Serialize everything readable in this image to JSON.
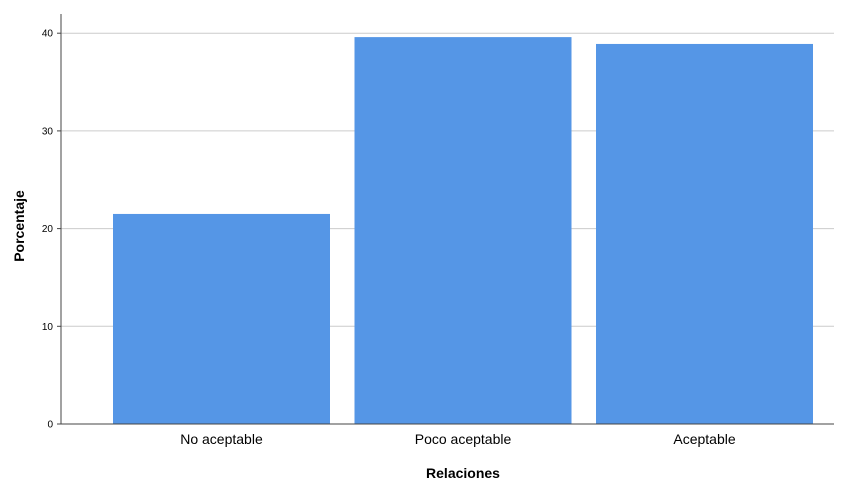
{
  "chart_data": {
    "type": "bar",
    "categories": [
      "No aceptable",
      "Poco aceptable",
      "Aceptable"
    ],
    "values": [
      21.5,
      39.6,
      38.9
    ],
    "xlabel": "Relaciones",
    "ylabel": "Porcentaje",
    "ylim": [
      0,
      42
    ],
    "yticks": [
      0,
      10,
      20,
      30,
      40
    ],
    "grid": true,
    "legend": "none",
    "colors": {
      "bar": "#5596E6",
      "grid": "#cccccc",
      "axis": "#444444"
    }
  }
}
